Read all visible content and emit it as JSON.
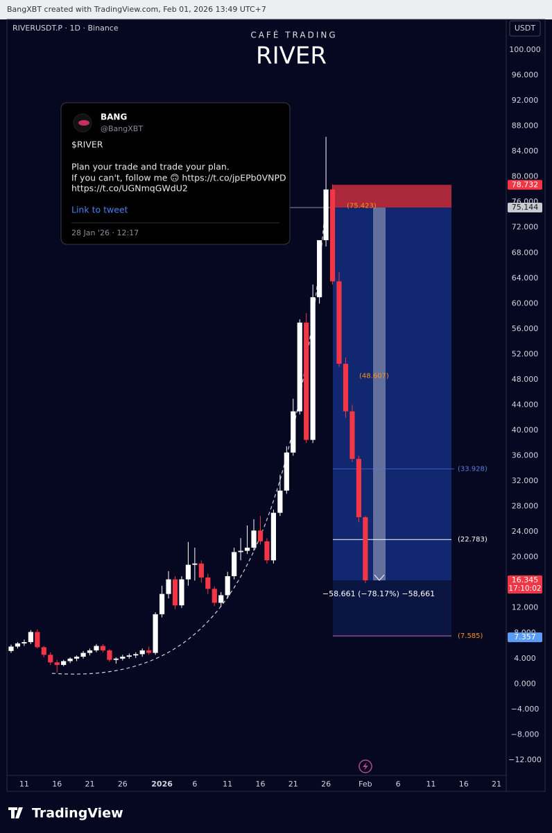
{
  "header": "BangXBT created with TradingView.com, Feb 01, 2026 13:49 UTC+7",
  "footer": "TradingView",
  "tweet": {
    "name": "BANG",
    "handle": "@BangXBT",
    "lines": [
      "$RIVER",
      "Plan your trade and trade your plan.",
      "If you can't, follow me 🙃 https://t.co/jpEPb0VNPD",
      "https://t.co/UGNmqGWdU2"
    ],
    "link": "Link to tweet",
    "date": "28 Jan '26 · 12:17"
  },
  "chart_data": {
    "type": "candlestick",
    "symbol": "RIVERUSDT.P · 1D · Binance",
    "brand": "CAFÉ TRADING",
    "title": "RIVER",
    "currency": "USDT",
    "up_color": "#ffffff",
    "down_color": "#f23645",
    "grid": false,
    "categories": [
      null,
      null,
      "11",
      null,
      null,
      null,
      null,
      "16",
      null,
      null,
      null,
      null,
      "21",
      null,
      null,
      null,
      null,
      "26",
      null,
      null,
      null,
      null,
      null,
      "2026",
      null,
      null,
      null,
      null,
      "6",
      null,
      null,
      null,
      null,
      "11",
      null,
      null,
      null,
      null,
      "16",
      null,
      null,
      null,
      null,
      "21",
      null,
      null,
      null,
      null,
      "26",
      null,
      null,
      null,
      null,
      null,
      "Feb",
      null,
      null,
      null,
      null,
      "6",
      null,
      null,
      null,
      null,
      "11",
      null,
      null,
      null,
      null,
      "16",
      null,
      null,
      null,
      null,
      "21"
    ],
    "open": [
      5.2,
      5.9,
      6.4,
      6.6,
      8.2,
      5.8,
      4.6,
      3.4,
      3.0,
      3.6,
      4.0,
      4.3,
      4.9,
      5.3,
      6.0,
      5.3,
      3.8,
      4.0,
      4.3,
      4.5,
      4.7,
      5.3,
      4.9,
      11.0,
      14.2,
      16.5,
      12.4,
      16.5,
      18.8,
      19.0,
      16.8,
      15.0,
      12.8,
      14.0,
      17.0,
      20.8,
      21.0,
      21.5,
      24.2,
      22.5,
      19.5,
      27.0,
      30.5,
      36.5,
      43.0,
      57.0,
      38.5,
      61.0,
      70.0,
      78.0,
      63.5,
      50.5,
      43.0,
      35.5,
      26.3,
      null,
      null,
      null,
      null,
      null,
      null,
      null,
      null,
      null,
      null,
      null,
      null,
      null,
      null,
      null,
      null,
      null,
      null,
      null,
      null
    ],
    "high": [
      6.2,
      6.6,
      7.0,
      8.5,
      8.6,
      6.0,
      5.0,
      3.8,
      3.8,
      4.2,
      4.5,
      5.2,
      5.6,
      6.3,
      6.3,
      5.5,
      4.2,
      4.6,
      4.8,
      5.0,
      5.6,
      5.9,
      11.3,
      15.5,
      17.8,
      17.0,
      17.0,
      22.4,
      21.5,
      19.5,
      17.4,
      15.4,
      14.5,
      17.7,
      21.5,
      23.0,
      25.0,
      26.0,
      26.5,
      23.0,
      27.5,
      33.0,
      37.5,
      45.0,
      57.5,
      58.5,
      63.0,
      70.0,
      86.3,
      78.8,
      65.0,
      51.5,
      44.0,
      36.0,
      26.5,
      null,
      null,
      null,
      null,
      null,
      null,
      null,
      null,
      null,
      null,
      null,
      null,
      null,
      null,
      null,
      null,
      null,
      null,
      null,
      null
    ],
    "low": [
      4.9,
      5.6,
      6.0,
      6.3,
      5.6,
      4.2,
      3.0,
      1.8,
      2.8,
      3.3,
      3.6,
      4.0,
      4.5,
      5.0,
      5.0,
      3.5,
      3.2,
      3.7,
      4.0,
      4.1,
      4.3,
      4.6,
      4.6,
      10.5,
      13.5,
      11.8,
      12.0,
      15.5,
      16.3,
      16.0,
      14.2,
      12.3,
      12.2,
      13.5,
      16.5,
      19.5,
      20.5,
      21.0,
      22.0,
      19.0,
      19.0,
      26.5,
      30.0,
      36.0,
      42.5,
      38.0,
      38.0,
      60.0,
      69.0,
      63.0,
      50.0,
      42.0,
      35.0,
      25.5,
      15.9,
      null,
      null,
      null,
      null,
      null,
      null,
      null,
      null,
      null,
      null,
      null,
      null,
      null,
      null,
      null,
      null,
      null,
      null,
      null,
      null
    ],
    "close": [
      5.9,
      6.4,
      6.6,
      8.2,
      5.8,
      4.6,
      3.4,
      3.0,
      3.6,
      4.0,
      4.3,
      4.9,
      5.3,
      6.0,
      5.3,
      3.8,
      4.0,
      4.3,
      4.5,
      4.7,
      5.3,
      4.9,
      11.0,
      14.2,
      16.5,
      12.4,
      16.5,
      18.8,
      19.0,
      16.8,
      15.0,
      12.8,
      14.0,
      17.0,
      20.8,
      21.0,
      21.5,
      24.2,
      22.5,
      19.5,
      27.0,
      30.5,
      36.5,
      43.0,
      57.0,
      38.5,
      61.0,
      70.0,
      78.0,
      63.5,
      50.5,
      43.0,
      35.5,
      26.3,
      16.345,
      null,
      null,
      null,
      null,
      null,
      null,
      null,
      null,
      null,
      null,
      null,
      null,
      null,
      null,
      null,
      null,
      null,
      null,
      null,
      null
    ],
    "ylim": [
      -14.2,
      104.6
    ],
    "yticks": [
      {
        "value": 100,
        "label": "100.000"
      },
      {
        "value": 96,
        "label": "96.000"
      },
      {
        "value": 92,
        "label": "92.000"
      },
      {
        "value": 88,
        "label": "88.000"
      },
      {
        "value": 84,
        "label": "84.000"
      },
      {
        "value": 80,
        "label": "80.000"
      },
      {
        "value": 76,
        "label": "76.000"
      },
      {
        "value": 72,
        "label": "72.000"
      },
      {
        "value": 68,
        "label": "68.000"
      },
      {
        "value": 64,
        "label": "64.000"
      },
      {
        "value": 60,
        "label": "60.000"
      },
      {
        "value": 56,
        "label": "56.000"
      },
      {
        "value": 52,
        "label": "52.000"
      },
      {
        "value": 48,
        "label": "48.000"
      },
      {
        "value": 44,
        "label": "44.000"
      },
      {
        "value": 40,
        "label": "40.000"
      },
      {
        "value": 36,
        "label": "36.000"
      },
      {
        "value": 32,
        "label": "32.000"
      },
      {
        "value": 28,
        "label": "28.000"
      },
      {
        "value": 24,
        "label": "24.000"
      },
      {
        "value": 20,
        "label": "20.000"
      },
      {
        "value": 16,
        "label": "16.000"
      },
      {
        "value": 12,
        "label": "12.000"
      },
      {
        "value": 8,
        "label": "8.000"
      },
      {
        "value": 4,
        "label": "4.000"
      },
      {
        "value": 0,
        "label": "0.000"
      },
      {
        "value": -4,
        "label": "−4.000"
      },
      {
        "value": -8,
        "label": "−8.000"
      },
      {
        "value": -12,
        "label": "−12.000"
      }
    ],
    "price_labels": [
      {
        "value": 78.732,
        "color": "#f23645",
        "text_color": "#ffffff"
      },
      {
        "value": 75.144,
        "color": "#c9cbd1",
        "text_color": "#131722"
      },
      {
        "value": 16.345,
        "color": "#f23645",
        "text_color": "#ffffff",
        "countdown": "17:10:02"
      },
      {
        "value": 7.357,
        "color": "#5b9cf6",
        "text_color": "#ffffff"
      }
    ],
    "levels": [
      {
        "value": 75.423,
        "label": "(75.423)",
        "color": "#f7931a"
      },
      {
        "value": 48.607,
        "label": "(48.607)",
        "color": "#f7931a"
      },
      {
        "value": 33.928,
        "label": "(33.928)",
        "color": "#5b7be0"
      },
      {
        "value": 22.783,
        "label": "(22.783)",
        "color": "#ffffff"
      },
      {
        "value": 7.585,
        "label": "(7.585)",
        "color": "#f7931a"
      }
    ],
    "position_label": "−58.661 (−78.17%) −58,661"
  }
}
